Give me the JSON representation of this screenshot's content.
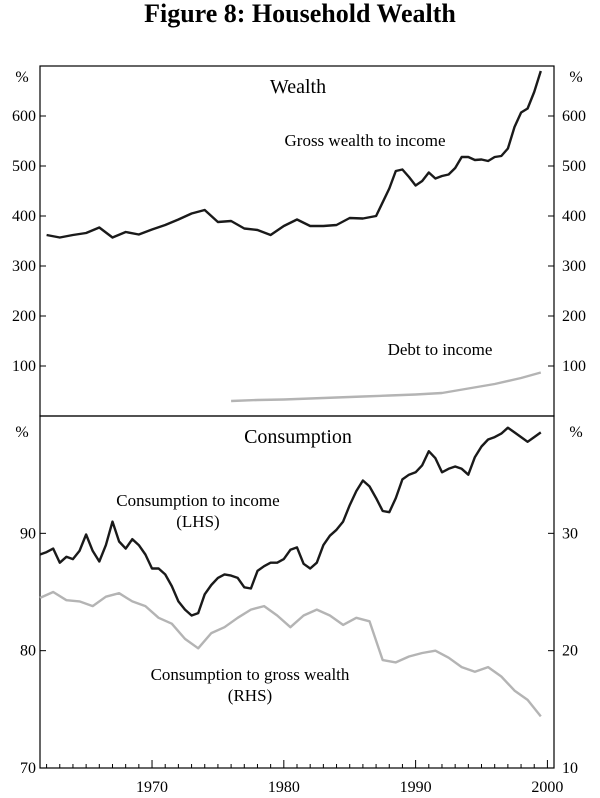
{
  "figure_title": "Figure 8: Household Wealth",
  "chart_data": [
    {
      "type": "line",
      "title": "Wealth",
      "units_left": "%",
      "units_right": "%",
      "ylim": [
        0,
        700
      ],
      "yticks": [
        100,
        200,
        300,
        400,
        500,
        600
      ],
      "xlim": [
        1961.5,
        2000.5
      ],
      "series": [
        {
          "name": "Gross wealth to income",
          "color": "#1a1a1a",
          "x": [
            1962,
            1963,
            1964,
            1965,
            1966,
            1967,
            1968,
            1969,
            1970,
            1971,
            1972,
            1973,
            1974,
            1975,
            1976,
            1977,
            1978,
            1979,
            1980,
            1981,
            1982,
            1983,
            1984,
            1985,
            1986,
            1987,
            1988,
            1988.5,
            1989,
            1989.5,
            1990,
            1990.5,
            1991,
            1991.5,
            1992,
            1992.5,
            1993,
            1993.5,
            1994,
            1994.5,
            1995,
            1995.5,
            1996,
            1996.5,
            1997,
            1997.5,
            1998,
            1998.5,
            1999,
            1999.5
          ],
          "values": [
            362,
            357,
            362,
            366,
            377,
            357,
            368,
            363,
            373,
            382,
            393,
            405,
            412,
            388,
            390,
            375,
            372,
            362,
            380,
            393,
            380,
            380,
            382,
            396,
            395,
            400,
            455,
            490,
            493,
            478,
            461,
            470,
            487,
            475,
            480,
            483,
            496,
            518,
            518,
            512,
            513,
            510,
            518,
            520,
            535,
            578,
            607,
            615,
            648,
            690
          ]
        },
        {
          "name": "Debt to income",
          "color": "#b4b4b4",
          "x": [
            1976,
            1978,
            1980,
            1982,
            1984,
            1986,
            1988,
            1990,
            1992,
            1994,
            1996,
            1998,
            1999.5
          ],
          "values": [
            30,
            32,
            33,
            35,
            37,
            39,
            41,
            43,
            46,
            55,
            64,
            76,
            87
          ]
        }
      ]
    },
    {
      "type": "line",
      "title": "Consumption",
      "units_left": "%",
      "units_right": "%",
      "ylim_left": [
        70,
        100
      ],
      "ylim_right": [
        10,
        40
      ],
      "yticks_left": [
        70,
        80,
        90
      ],
      "yticks_right": [
        10,
        20,
        30
      ],
      "xlim": [
        1961.5,
        2000.5
      ],
      "xticks": [
        1970,
        1980,
        1990,
        2000
      ],
      "series": [
        {
          "name": "Consumption to income (LHS)",
          "axis": "left",
          "color": "#1a1a1a",
          "x": [
            1961.5,
            1962,
            1962.5,
            1963,
            1963.5,
            1964,
            1964.5,
            1965,
            1965.5,
            1966,
            1966.5,
            1967,
            1967.5,
            1968,
            1968.5,
            1969,
            1969.5,
            1970,
            1970.5,
            1971,
            1971.5,
            1972,
            1972.5,
            1973,
            1973.5,
            1974,
            1974.5,
            1975,
            1975.5,
            1976,
            1976.5,
            1977,
            1977.5,
            1978,
            1978.5,
            1979,
            1979.5,
            1980,
            1980.5,
            1981,
            1981.5,
            1982,
            1982.5,
            1983,
            1983.5,
            1984,
            1984.5,
            1985,
            1985.5,
            1986,
            1986.5,
            1987,
            1987.5,
            1988,
            1988.5,
            1989,
            1989.5,
            1990,
            1990.5,
            1991,
            1991.5,
            1992,
            1992.5,
            1993,
            1993.5,
            1994,
            1994.5,
            1995,
            1995.5,
            1996,
            1996.5,
            1997,
            1997.5,
            1998,
            1998.5,
            1999,
            1999.5
          ],
          "values": [
            88.2,
            88.4,
            88.7,
            87.5,
            88.0,
            87.8,
            88.5,
            89.9,
            88.5,
            87.6,
            89.0,
            91.0,
            89.3,
            88.7,
            89.5,
            89.0,
            88.2,
            87.0,
            87.0,
            86.5,
            85.5,
            84.2,
            83.5,
            83.0,
            83.2,
            84.8,
            85.6,
            86.2,
            86.5,
            86.4,
            86.2,
            85.4,
            85.3,
            86.8,
            87.2,
            87.5,
            87.5,
            87.8,
            88.6,
            88.8,
            87.4,
            87.0,
            87.5,
            89.0,
            89.8,
            90.3,
            91.0,
            92.4,
            93.6,
            94.5,
            94.0,
            93.0,
            91.9,
            91.8,
            93.0,
            94.6,
            95.0,
            95.2,
            95.8,
            97.0,
            96.4,
            95.2,
            95.5,
            95.7,
            95.5,
            95.0,
            96.5,
            97.4,
            98.0,
            98.2,
            98.5,
            99.0,
            98.6,
            98.2,
            97.8,
            98.2,
            98.6
          ]
        },
        {
          "name": "Consumption to gross wealth (RHS)",
          "axis": "right",
          "color": "#b4b4b4",
          "x": [
            1961.5,
            1962.5,
            1963.5,
            1964.5,
            1965.5,
            1966.5,
            1967.5,
            1968.5,
            1969.5,
            1970.5,
            1971.5,
            1972.5,
            1973.5,
            1974.5,
            1975.5,
            1976.5,
            1977.5,
            1978.5,
            1979.5,
            1980.5,
            1981.5,
            1982.5,
            1983.5,
            1984.5,
            1985.5,
            1986.5,
            1987.5,
            1988.5,
            1989.5,
            1990.5,
            1991.5,
            1992.5,
            1993.5,
            1994.5,
            1995.5,
            1996.5,
            1997.5,
            1998.5,
            1999.5
          ],
          "values": [
            24.5,
            25.0,
            24.3,
            24.2,
            23.8,
            24.6,
            24.9,
            24.2,
            23.8,
            22.8,
            22.3,
            21.0,
            20.2,
            21.5,
            22.0,
            22.8,
            23.5,
            23.8,
            23.0,
            22.0,
            23.0,
            23.5,
            23.0,
            22.2,
            22.8,
            22.5,
            19.2,
            19.0,
            19.5,
            19.8,
            20.0,
            19.4,
            18.6,
            18.2,
            18.6,
            17.8,
            16.6,
            15.8,
            14.4
          ]
        }
      ]
    }
  ],
  "annotations": {
    "gross_wealth": "Gross wealth to income",
    "debt": "Debt to income",
    "cons_income_1": "Consumption to income",
    "cons_income_2": "(LHS)",
    "cons_wealth_1": "Consumption to gross wealth",
    "cons_wealth_2": "(RHS)"
  }
}
